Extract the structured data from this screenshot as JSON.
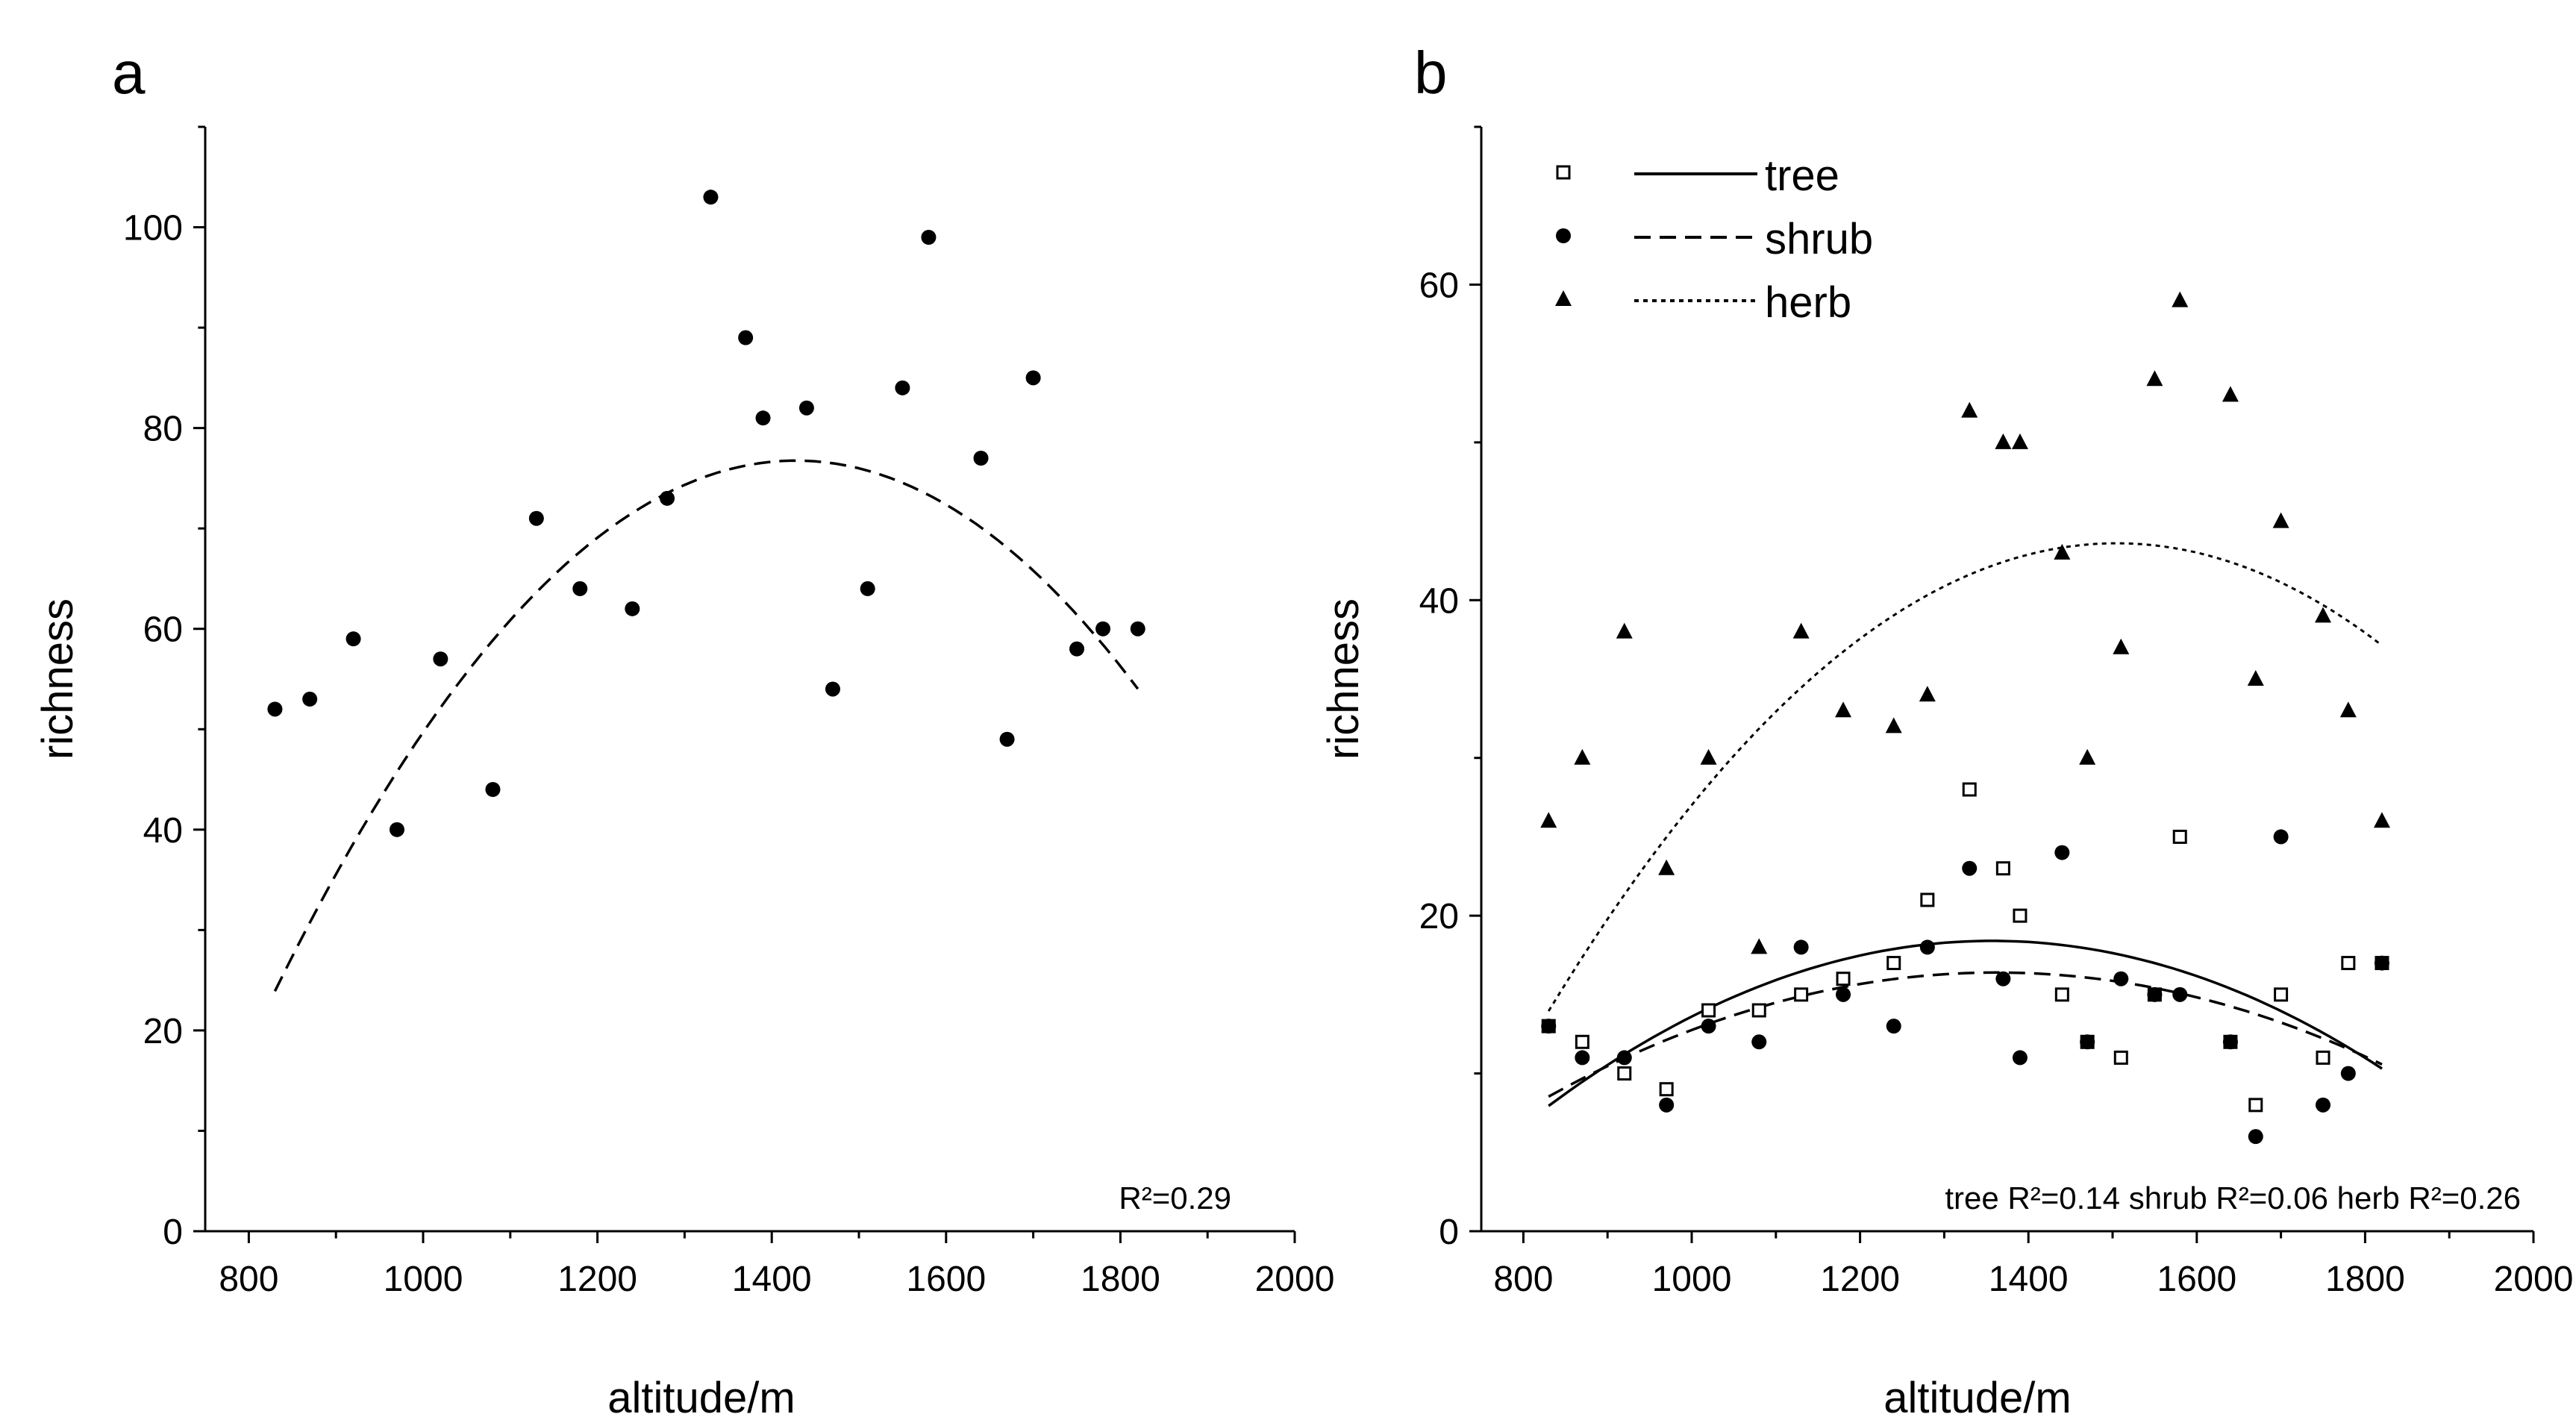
{
  "chart_data": [
    {
      "panel_label": "a",
      "type": "scatter",
      "xlabel": "altitude/m",
      "ylabel": "richness",
      "xlim": [
        750,
        2000
      ],
      "ylim": [
        0,
        110
      ],
      "xticks": [
        800,
        1000,
        1200,
        1400,
        1600,
        1800,
        2000
      ],
      "yticks": [
        0,
        20,
        40,
        60,
        80,
        100
      ],
      "annotation": "R²=0.29",
      "series": [
        {
          "name": "richness",
          "marker": "filled-circle",
          "x": [
            830,
            870,
            920,
            970,
            1020,
            1080,
            1130,
            1180,
            1240,
            1280,
            1330,
            1370,
            1390,
            1440,
            1470,
            1510,
            1550,
            1580,
            1640,
            1670,
            1700,
            1750,
            1780,
            1820
          ],
          "y": [
            52,
            53,
            59,
            40,
            57,
            44,
            71,
            64,
            62,
            73,
            103,
            89,
            81,
            82,
            54,
            64,
            84,
            99,
            77,
            49,
            85,
            58,
            60,
            60
          ]
        }
      ],
      "fits": [
        {
          "name": "fit",
          "style": "dashed",
          "x_range": [
            830,
            1820
          ],
          "coef": [
            -224.71,
            0.42227,
            -0.00014787
          ]
        }
      ]
    },
    {
      "panel_label": "b",
      "type": "scatter",
      "xlabel": "altitude/m",
      "ylabel": "richness",
      "xlim": [
        750,
        2000
      ],
      "ylim": [
        0,
        70
      ],
      "xticks": [
        800,
        1000,
        1200,
        1400,
        1600,
        1800,
        2000
      ],
      "yticks": [
        0,
        20,
        40,
        60
      ],
      "legend": [
        {
          "label": "tree",
          "marker": "open-square",
          "line": "solid"
        },
        {
          "label": "shrub",
          "marker": "filled-circle",
          "line": "dashed"
        },
        {
          "label": "herb",
          "marker": "filled-triangle",
          "line": "dotted"
        }
      ],
      "annotation": "tree R²=0.14 shrub R²=0.06 herb R²=0.26",
      "series": [
        {
          "name": "tree",
          "marker": "open-square",
          "x": [
            830,
            870,
            920,
            970,
            1020,
            1080,
            1130,
            1180,
            1240,
            1280,
            1330,
            1370,
            1390,
            1440,
            1470,
            1510,
            1550,
            1580,
            1640,
            1670,
            1700,
            1750,
            1780,
            1820
          ],
          "y": [
            13,
            12,
            10,
            9,
            14,
            14,
            15,
            16,
            17,
            21,
            28,
            23,
            20,
            15,
            12,
            11,
            15,
            25,
            12,
            8,
            15,
            11,
            17,
            17
          ]
        },
        {
          "name": "shrub",
          "marker": "filled-circle",
          "x": [
            830,
            870,
            920,
            970,
            1020,
            1080,
            1130,
            1180,
            1240,
            1280,
            1330,
            1370,
            1390,
            1440,
            1470,
            1510,
            1550,
            1580,
            1640,
            1670,
            1700,
            1750,
            1780,
            1820
          ],
          "y": [
            13,
            11,
            11,
            8,
            13,
            12,
            18,
            15,
            13,
            18,
            23,
            16,
            11,
            24,
            12,
            16,
            15,
            15,
            12,
            6,
            25,
            8,
            10,
            17
          ]
        },
        {
          "name": "herb",
          "marker": "filled-triangle",
          "x": [
            830,
            870,
            920,
            970,
            1020,
            1080,
            1130,
            1180,
            1240,
            1280,
            1330,
            1370,
            1390,
            1440,
            1470,
            1510,
            1550,
            1580,
            1640,
            1670,
            1700,
            1750,
            1780,
            1820
          ],
          "y": [
            26,
            30,
            38,
            23,
            30,
            18,
            38,
            33,
            32,
            34,
            52,
            50,
            50,
            43,
            30,
            37,
            54,
            59,
            53,
            35,
            45,
            39,
            33,
            26
          ]
        }
      ],
      "fits": [
        {
          "name": "tree",
          "style": "solid",
          "x_range": [
            830,
            1820
          ],
          "coef": [
            -51.02,
            0.10234,
            -3.7716e-05
          ]
        },
        {
          "name": "shrub",
          "style": "dashed",
          "x_range": [
            830,
            1820
          ],
          "coef": [
            -35.13,
            0.07565,
            -2.7767e-05
          ]
        },
        {
          "name": "herb",
          "style": "dotted",
          "x_range": [
            830,
            1820
          ],
          "coef": [
            -103.87,
            0.19601,
            -6.5129e-05
          ]
        }
      ]
    }
  ]
}
